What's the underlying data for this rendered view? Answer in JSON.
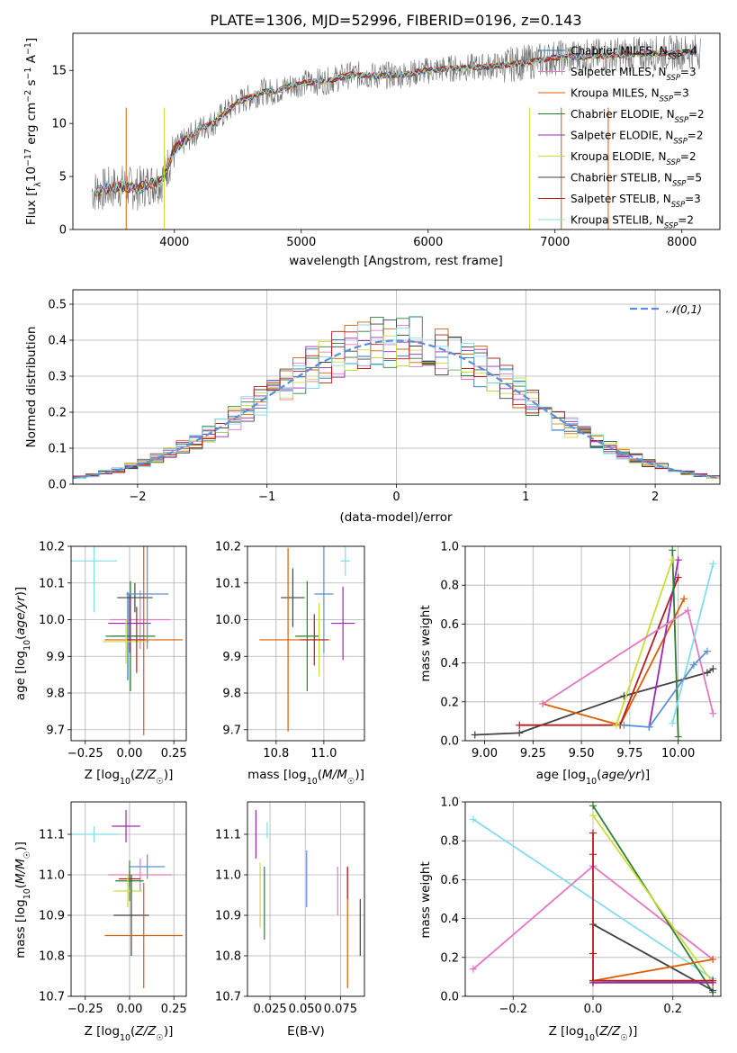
{
  "chart_data": [
    {
      "type": "line",
      "title": "PLATE=1306, MJD=52996, FIBERID=0196, z=0.143",
      "xlabel": "wavelength [Angstrom, rest frame]",
      "ylabel": "Flux [f_λ10^-17 erg cm^-2 s^-1 A^-1]",
      "xlim": [
        3200,
        8300
      ],
      "ylim": [
        0,
        18.5
      ],
      "xticks": [
        "4000",
        "5000",
        "6000",
        "7000",
        "8000"
      ],
      "yticks": [
        "0",
        "5",
        "10",
        "15"
      ],
      "legend_position": "top-right",
      "series": [
        {
          "name": "Chabrier MILES, N_SSP=4",
          "color": "#1f77b4"
        },
        {
          "name": "Salpeter MILES, N_SSP=3",
          "color": "#e377c2"
        },
        {
          "name": "Kroupa MILES, N_SSP=3",
          "color": "#d95f02"
        },
        {
          "name": "Chabrier ELODIE, N_SSP=2",
          "color": "#2e7d32"
        },
        {
          "name": "Salpeter ELODIE, N_SSP=2",
          "color": "#9c27b0"
        },
        {
          "name": "Kroupa ELODIE, N_SSP=2",
          "color": "#cddc39"
        },
        {
          "name": "Chabrier STELIB, N_SSP=5",
          "color": "#424242"
        },
        {
          "name": "Salpeter STELIB, N_SSP=3",
          "color": "#b71c1c"
        },
        {
          "name": "Kroupa STELIB, N_SSP=2",
          "color": "#80deea"
        }
      ],
      "continuum": {
        "x": [
          3350,
          3500,
          3600,
          3700,
          3800,
          3900,
          4000,
          4100,
          4200,
          4300,
          4400,
          4500,
          4600,
          4700,
          4800,
          4900,
          5000,
          5200,
          5400,
          5600,
          5800,
          6000,
          6200,
          6400,
          6600,
          6800,
          7000,
          7200,
          7400,
          7600,
          7800,
          8000,
          8150
        ],
        "y": [
          3.6,
          3.9,
          4.1,
          3.8,
          4.3,
          4.6,
          7.5,
          8.5,
          9.5,
          10.0,
          11.0,
          12.0,
          12.5,
          13.0,
          13.0,
          13.5,
          13.8,
          14.0,
          14.6,
          14.5,
          14.6,
          15.0,
          15.2,
          15.3,
          15.5,
          15.8,
          16.2,
          16.3,
          16.4,
          16.5,
          16.6,
          16.7,
          16.8
        ]
      }
    },
    {
      "type": "histogram",
      "xlabel": "(data-model)/error",
      "ylabel": "Normed distribution",
      "xlim": [
        -2.5,
        2.5
      ],
      "ylim": [
        0,
        0.54
      ],
      "xticks": [
        "−2",
        "−1",
        "0",
        "1",
        "2"
      ],
      "yticks": [
        "0.0",
        "0.1",
        "0.2",
        "0.3",
        "0.4",
        "0.5"
      ],
      "legend_position": "top-right",
      "reference_curve": {
        "name": "𝒩(0,1)",
        "color": "#5b8fd9"
      },
      "bin_width": 0.1
    },
    {
      "type": "scatter",
      "xlabel": "Z [log10(Z/Z☉)]",
      "ylabel": "age [log10(age/yr)]",
      "xlim": [
        -0.33,
        0.32
      ],
      "ylim": [
        9.67,
        10.2
      ],
      "xticks": [
        "−0.25",
        "0.00",
        "0.25"
      ],
      "yticks": [
        "9.7",
        "9.8",
        "9.9",
        "10.0",
        "10.1",
        "10.2"
      ],
      "points": [
        {
          "x": -0.01,
          "y": 9.955,
          "xerr": 0.09,
          "yerr": 0.12,
          "color": "#1f77b4"
        },
        {
          "x": 0.06,
          "y": 10.0,
          "xerr": 0.17,
          "yerr": 0.08,
          "color": "#e377c2"
        },
        {
          "x": 0.08,
          "y": 9.945,
          "xerr": 0.22,
          "yerr": 0.26,
          "color": "#d95f02"
        },
        {
          "x": 0.005,
          "y": 9.955,
          "xerr": 0.14,
          "yerr": 0.15,
          "color": "#2e7d32"
        },
        {
          "x": 0.0,
          "y": 9.99,
          "xerr": 0.12,
          "yerr": 0.08,
          "color": "#9c27b0"
        },
        {
          "x": -0.02,
          "y": 9.94,
          "xerr": 0.13,
          "yerr": 0.06,
          "color": "#cddc39"
        },
        {
          "x": 0.03,
          "y": 10.06,
          "xerr": 0.1,
          "yerr": 0.04,
          "color": "#424242"
        },
        {
          "x": 0.04,
          "y": 9.945,
          "xerr": 0.05,
          "yerr": 0.09,
          "color": "#b71c1c"
        },
        {
          "x": -0.2,
          "y": 10.16,
          "xerr": 0.13,
          "yerr": 0.14,
          "color": "#80deea"
        },
        {
          "x": 0.1,
          "y": 10.07,
          "xerr": 0.12,
          "yerr": 0.15,
          "color": "#5b8fd9"
        }
      ]
    },
    {
      "type": "scatter",
      "xlabel": "mass [log10(M/M☉)]",
      "xlim": [
        10.68,
        11.17
      ],
      "ylim": [
        9.67,
        10.2
      ],
      "xticks": [
        "10.8",
        "11.0"
      ],
      "yticks": [
        "9.7",
        "9.8",
        "9.9",
        "10.0",
        "10.1",
        "10.2"
      ],
      "points": [
        {
          "x": 11.0,
          "y": 10.07,
          "xerr": 0.04,
          "yerr": 0.16,
          "color": "#5b8fd9"
        },
        {
          "x": 11.08,
          "y": 9.99,
          "xerr": 0.05,
          "yerr": 0.1,
          "color": "#9c27b0"
        },
        {
          "x": 11.09,
          "y": 10.16,
          "xerr": 0.02,
          "yerr": 0.04,
          "color": "#80deea"
        },
        {
          "x": 10.87,
          "y": 10.06,
          "xerr": 0.05,
          "yerr": 0.08,
          "color": "#424242"
        },
        {
          "x": 10.93,
          "y": 9.955,
          "xerr": 0.05,
          "yerr": 0.15,
          "color": "#2e7d32"
        },
        {
          "x": 10.85,
          "y": 9.945,
          "xerr": 0.12,
          "yerr": 0.25,
          "color": "#d95f02"
        },
        {
          "x": 10.98,
          "y": 9.945,
          "xerr": 0.05,
          "yerr": 0.1,
          "color": "#cddc39"
        },
        {
          "x": 10.96,
          "y": 9.945,
          "xerr": 0.06,
          "yerr": 0.07,
          "color": "#b71c1c"
        }
      ]
    },
    {
      "type": "line",
      "xlabel": "age [log10(age/yr)]",
      "ylabel": "mass weight",
      "xlim": [
        8.9,
        10.22
      ],
      "ylim": [
        0,
        1
      ],
      "xticks": [
        "9.00",
        "9.25",
        "9.50",
        "9.75",
        "10.00"
      ],
      "yticks": [
        "0.0",
        "0.2",
        "0.4",
        "0.6",
        "0.8",
        "1.0"
      ],
      "series": [
        {
          "color": "#424242",
          "x": [
            8.95,
            9.18,
            9.72,
            10.15,
            10.18
          ],
          "y": [
            0.03,
            0.04,
            0.23,
            0.35,
            0.37
          ]
        },
        {
          "color": "#d95f02",
          "x": [
            9.3,
            9.7,
            10.03
          ],
          "y": [
            0.19,
            0.08,
            0.73
          ]
        },
        {
          "color": "#b71c1c",
          "x": [
            9.18,
            9.7,
            10.0
          ],
          "y": [
            0.08,
            0.08,
            0.84
          ]
        },
        {
          "color": "#9c27b0",
          "x": [
            9.85,
            10.0
          ],
          "y": [
            0.07,
            0.93
          ]
        },
        {
          "color": "#2e7d32",
          "x": [
            9.97,
            10.0
          ],
          "y": [
            0.98,
            0.02
          ]
        },
        {
          "color": "#cddc39",
          "x": [
            9.68,
            9.97
          ],
          "y": [
            0.08,
            0.93
          ]
        },
        {
          "color": "#e377c2",
          "x": [
            9.3,
            10.05,
            10.18
          ],
          "y": [
            0.19,
            0.67,
            0.14
          ]
        },
        {
          "color": "#80deea",
          "x": [
            9.97,
            10.18
          ],
          "y": [
            0.09,
            0.91
          ]
        },
        {
          "color": "#5b8fd9",
          "x": [
            9.72,
            9.85,
            10.08,
            10.15
          ],
          "y": [
            0.08,
            0.07,
            0.39,
            0.46
          ]
        }
      ]
    },
    {
      "type": "scatter",
      "xlabel": "Z [log10(Z/Z☉)]",
      "ylabel": "mass [log10(M/M☉)]",
      "xlim": [
        -0.33,
        0.32
      ],
      "ylim": [
        10.7,
        11.18
      ],
      "xticks": [
        "−0.25",
        "0.00",
        "0.25"
      ],
      "yticks": [
        "10.7",
        "10.8",
        "10.9",
        "11.0",
        "11.1"
      ],
      "points": [
        {
          "x": -0.2,
          "y": 11.1,
          "xerr": 0.14,
          "yerr": 0.02,
          "color": "#80deea"
        },
        {
          "x": -0.02,
          "y": 11.12,
          "xerr": 0.08,
          "yerr": 0.04,
          "color": "#9c27b0"
        },
        {
          "x": 0.1,
          "y": 11.02,
          "xerr": 0.1,
          "yerr": 0.03,
          "color": "#5b8fd9"
        },
        {
          "x": 0.06,
          "y": 11.0,
          "xerr": 0.18,
          "yerr": 0.04,
          "color": "#e377c2"
        },
        {
          "x": 0.0,
          "y": 10.99,
          "xerr": 0.06,
          "yerr": 0.02,
          "color": "#b71c1c"
        },
        {
          "x": 0.0,
          "y": 10.985,
          "xerr": 0.08,
          "yerr": 0.05,
          "color": "#2e7d32"
        },
        {
          "x": -0.01,
          "y": 10.96,
          "xerr": 0.08,
          "yerr": 0.04,
          "color": "#cddc39"
        },
        {
          "x": 0.01,
          "y": 10.9,
          "xerr": 0.1,
          "yerr": 0.1,
          "color": "#424242"
        },
        {
          "x": 0.08,
          "y": 10.85,
          "xerr": 0.22,
          "yerr": 0.13,
          "color": "#d95f02"
        }
      ]
    },
    {
      "type": "scatter",
      "xlabel": "E(B-V)",
      "xlim": [
        0.009,
        0.092
      ],
      "ylim": [
        10.7,
        11.18
      ],
      "xticks": [
        "0.025",
        "0.050",
        "0.075"
      ],
      "yticks": [
        "10.7",
        "10.8",
        "10.9",
        "11.0",
        "11.1"
      ],
      "points": [
        {
          "x": 0.015,
          "y": 11.1,
          "yerr": 0.06,
          "color": "#9c27b0"
        },
        {
          "x": 0.018,
          "y": 10.95,
          "yerr": 0.08,
          "color": "#cddc39"
        },
        {
          "x": 0.021,
          "y": 10.93,
          "yerr": 0.09,
          "color": "#2e7d32"
        },
        {
          "x": 0.023,
          "y": 11.11,
          "yerr": 0.02,
          "color": "#80deea"
        },
        {
          "x": 0.051,
          "y": 10.99,
          "yerr": 0.07,
          "color": "#5b8fd9"
        },
        {
          "x": 0.073,
          "y": 10.96,
          "yerr": 0.06,
          "color": "#e377c2"
        },
        {
          "x": 0.08,
          "y": 10.87,
          "yerr": 0.15,
          "color": "#d95f02"
        },
        {
          "x": 0.08,
          "y": 10.98,
          "yerr": 0.04,
          "color": "#b71c1c"
        },
        {
          "x": 0.089,
          "y": 10.87,
          "yerr": 0.07,
          "color": "#424242"
        }
      ]
    },
    {
      "type": "line",
      "xlabel": "Z [log10(Z/Z☉)]",
      "ylabel": "mass weight",
      "xlim": [
        -0.32,
        0.32
      ],
      "ylim": [
        0,
        1
      ],
      "xticks": [
        "−0.2",
        "0.0",
        "0.2"
      ],
      "yticks": [
        "0.0",
        "0.2",
        "0.4",
        "0.6",
        "0.8",
        "1.0"
      ],
      "series": [
        {
          "color": "#80deea",
          "x": [
            -0.3,
            0.3
          ],
          "y": [
            0.91,
            0.09
          ]
        },
        {
          "color": "#e377c2",
          "x": [
            -0.3,
            0.0,
            0.3
          ],
          "y": [
            0.14,
            0.67,
            0.19
          ]
        },
        {
          "color": "#2e7d32",
          "x": [
            0.0,
            0.3
          ],
          "y": [
            0.98,
            0.02
          ]
        },
        {
          "color": "#cddc39",
          "x": [
            0.0,
            0.3
          ],
          "y": [
            0.93,
            0.07
          ]
        },
        {
          "color": "#424242",
          "x": [
            0.0,
            0.3
          ],
          "y": [
            0.37,
            0.03
          ]
        },
        {
          "color": "#d95f02",
          "x": [
            0.0,
            0.3
          ],
          "y": [
            0.08,
            0.19
          ]
        },
        {
          "color": "#5b8fd9",
          "x": [
            0.0,
            0.3
          ],
          "y": [
            0.07,
            0.08
          ]
        },
        {
          "color": "#9c27b0",
          "x": [
            0.0,
            0.3
          ],
          "y": [
            0.07,
            0.07
          ]
        },
        {
          "color": "#b71c1c",
          "x": [
            0.0,
            0.0,
            0.0,
            0.0,
            0.3
          ],
          "y": [
            0.84,
            0.73,
            0.22,
            0.08,
            0.08
          ]
        }
      ]
    }
  ]
}
